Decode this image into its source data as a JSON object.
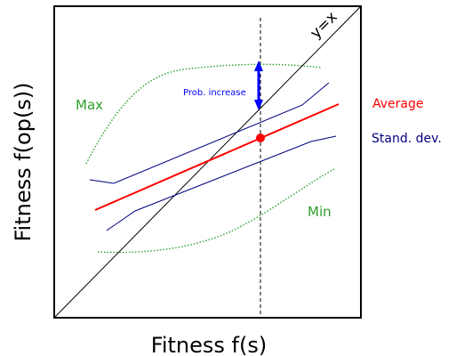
{
  "axis_labels": {
    "x": "Fitness f(s)",
    "y": "Fitness f(op(s))"
  },
  "curve_labels": {
    "identity": "y=x",
    "max": "Max",
    "min": "Min",
    "average": "Average",
    "std_dev": "Stand. dev.",
    "annotation": "Prob. increase"
  },
  "colors": {
    "frame": "#000000",
    "identity": "#000000",
    "max_min": "#2ca02c",
    "average": "#ff0000",
    "std_dev": "#000080",
    "annotation": "#0000ff"
  }
}
